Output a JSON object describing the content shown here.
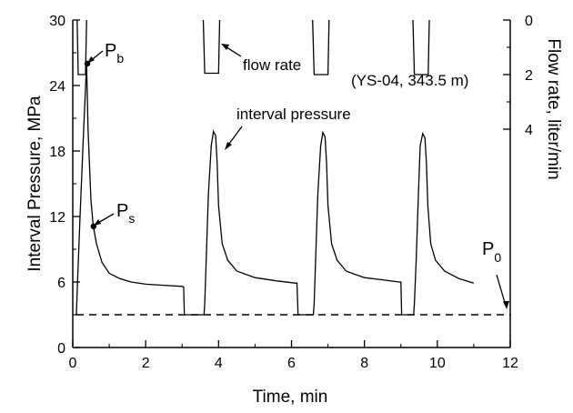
{
  "chart_data": {
    "type": "line",
    "xlabel": "Time, min",
    "ylabel_left": "Interval Pressure, MPa",
    "ylabel_right": "Flow rate, liter/min",
    "xlim": [
      0,
      12
    ],
    "ylim_left": [
      0,
      30
    ],
    "ylim_right": [
      0,
      12
    ],
    "right_axis_inverted": true,
    "x_ticks": [
      "0",
      "2",
      "4",
      "6",
      "8",
      "10",
      "12"
    ],
    "y_ticks_left": [
      "0",
      "6",
      "12",
      "18",
      "24",
      "30"
    ],
    "y_ticks_right": [
      "0",
      "2",
      "4"
    ],
    "grid": false,
    "annotations": {
      "pb_main": "P",
      "pb_sub": "b",
      "ps_main": "P",
      "ps_sub": "s",
      "p0_main": "P",
      "p0_sub": "0",
      "flow_rate": "flow rate",
      "interval_pressure": "interval pressure",
      "well_info": "(YS-04, 343.5 m)"
    },
    "series": [
      {
        "name": "interval pressure",
        "axis": "left",
        "style": "solid",
        "points": [
          [
            0.05,
            3.0
          ],
          [
            0.1,
            3.0
          ],
          [
            0.12,
            5.0
          ],
          [
            0.2,
            12.0
          ],
          [
            0.3,
            20.0
          ],
          [
            0.38,
            26.0
          ],
          [
            0.42,
            20.0
          ],
          [
            0.5,
            13.5
          ],
          [
            0.56,
            11.2
          ],
          [
            0.65,
            9.5
          ],
          [
            0.8,
            7.8
          ],
          [
            1.0,
            6.8
          ],
          [
            1.3,
            6.3
          ],
          [
            1.6,
            6.0
          ],
          [
            2.0,
            5.8
          ],
          [
            2.5,
            5.7
          ],
          [
            3.0,
            5.6
          ],
          [
            3.04,
            5.55
          ],
          [
            3.06,
            3.0
          ],
          [
            3.6,
            3.0
          ],
          [
            3.62,
            4.0
          ],
          [
            3.66,
            8.0
          ],
          [
            3.72,
            14.0
          ],
          [
            3.8,
            18.5
          ],
          [
            3.86,
            19.8
          ],
          [
            3.92,
            19.4
          ],
          [
            3.96,
            17.0
          ],
          [
            4.0,
            13.0
          ],
          [
            4.1,
            9.5
          ],
          [
            4.25,
            8.0
          ],
          [
            4.5,
            7.0
          ],
          [
            5.0,
            6.4
          ],
          [
            5.6,
            6.1
          ],
          [
            6.1,
            5.9
          ],
          [
            6.15,
            5.9
          ],
          [
            6.18,
            3.0
          ],
          [
            6.6,
            3.0
          ],
          [
            6.62,
            4.0
          ],
          [
            6.66,
            8.0
          ],
          [
            6.72,
            14.0
          ],
          [
            6.8,
            18.5
          ],
          [
            6.86,
            19.7
          ],
          [
            6.92,
            19.3
          ],
          [
            6.96,
            17.0
          ],
          [
            7.0,
            13.0
          ],
          [
            7.1,
            9.5
          ],
          [
            7.25,
            8.0
          ],
          [
            7.5,
            7.0
          ],
          [
            8.0,
            6.4
          ],
          [
            8.5,
            6.2
          ],
          [
            8.95,
            6.0
          ],
          [
            9.0,
            6.0
          ],
          [
            9.02,
            3.0
          ],
          [
            9.35,
            3.0
          ],
          [
            9.37,
            4.0
          ],
          [
            9.42,
            8.0
          ],
          [
            9.48,
            14.0
          ],
          [
            9.53,
            18.5
          ],
          [
            9.6,
            19.6
          ],
          [
            9.66,
            19.2
          ],
          [
            9.7,
            17.0
          ],
          [
            9.74,
            13.0
          ],
          [
            9.82,
            9.5
          ],
          [
            9.95,
            8.0
          ],
          [
            10.2,
            7.0
          ],
          [
            10.6,
            6.3
          ],
          [
            11.0,
            5.9
          ]
        ]
      },
      {
        "name": "flow rate",
        "axis": "right",
        "style": "solid",
        "segments": [
          [
            [
              0.12,
              0
            ],
            [
              0.15,
              2.0
            ],
            [
              0.35,
              2.0
            ],
            [
              0.38,
              0
            ]
          ],
          [
            [
              3.58,
              0
            ],
            [
              3.62,
              1.95
            ],
            [
              4.0,
              1.95
            ],
            [
              4.03,
              0
            ]
          ],
          [
            [
              6.58,
              0
            ],
            [
              6.62,
              2.0
            ],
            [
              7.0,
              2.0
            ],
            [
              7.03,
              0
            ]
          ],
          [
            [
              9.33,
              0
            ],
            [
              9.37,
              2.0
            ],
            [
              9.75,
              2.0
            ],
            [
              9.78,
              0
            ]
          ]
        ]
      },
      {
        "name": "P0",
        "axis": "left",
        "style": "dashed",
        "points": [
          [
            0.1,
            3.0
          ],
          [
            12.0,
            3.0
          ]
        ]
      }
    ],
    "markers": [
      {
        "x": 0.4,
        "y": 26.0,
        "label": "pb"
      },
      {
        "x": 0.57,
        "y": 11.1,
        "label": "ps"
      }
    ]
  }
}
